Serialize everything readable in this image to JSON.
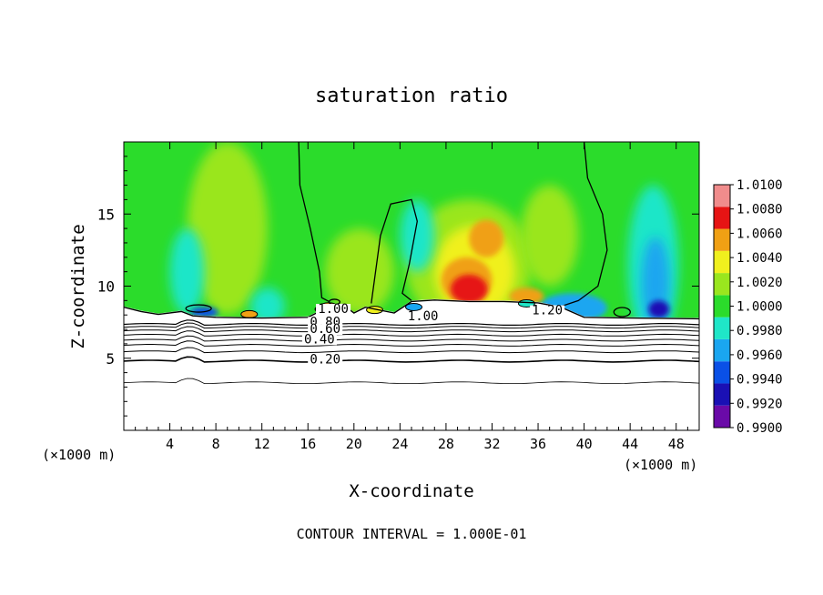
{
  "chart_data": {
    "type": "heatmap",
    "title": "saturation ratio",
    "xlabel": "X-coordinate",
    "ylabel": "Z-coordinate",
    "x_units": "(×1000 m)",
    "x_units_right": "(×1000 m)",
    "footer": "CONTOUR INTERVAL = 1.000E-01",
    "xlim": [
      0,
      50
    ],
    "ylim": [
      0,
      20
    ],
    "x_ticks": [
      4,
      8,
      12,
      16,
      20,
      24,
      28,
      32,
      36,
      40,
      44,
      48
    ],
    "x_tick_labels": [
      "4",
      "8",
      "12",
      "16",
      "20",
      "24",
      "28",
      "32",
      "36",
      "40",
      "44",
      "48"
    ],
    "y_ticks": [
      5,
      10,
      15
    ],
    "y_tick_labels": [
      "5",
      "10",
      "15"
    ],
    "colorbar": {
      "levels": [
        0.99,
        0.992,
        0.994,
        0.996,
        0.998,
        1.0,
        1.002,
        1.004,
        1.006,
        1.008,
        1.01
      ],
      "labels": [
        "0.9900",
        "0.9920",
        "0.9940",
        "0.9960",
        "0.9980",
        "1.0000",
        "1.0020",
        "1.0040",
        "1.0060",
        "1.0080",
        "1.0100"
      ],
      "colors": [
        "#6a0aa8",
        "#1a10b4",
        "#0a50e6",
        "#1aa6f0",
        "#1fe6c8",
        "#2bdc2b",
        "#9ae61e",
        "#f0f01e",
        "#f0a014",
        "#e61414",
        "#f08c8c"
      ]
    },
    "background_color": "#2bdc2b",
    "contour_labels": [
      {
        "text": "1.00",
        "x": 18.2,
        "z": 8.2
      },
      {
        "text": "0.80",
        "x": 17.5,
        "z": 7.3
      },
      {
        "text": "0.60",
        "x": 17.5,
        "z": 6.8
      },
      {
        "text": "0.40",
        "x": 17.0,
        "z": 6.1
      },
      {
        "text": "0.20",
        "x": 17.5,
        "z": 4.7
      },
      {
        "text": "1.00",
        "x": 26.0,
        "z": 7.7
      },
      {
        "text": "1.20",
        "x": 36.8,
        "z": 8.1
      }
    ],
    "features": {
      "subsaturated_layer_top_z": 7.8,
      "contour_levels_drawn": [
        0.2,
        0.4,
        0.6,
        0.8,
        1.0,
        1.2
      ],
      "high_saturation_core": {
        "x": 30,
        "z": 10.5,
        "value": 1.007
      },
      "low_saturation_columns_x": [
        6,
        12,
        46
      ]
    }
  }
}
